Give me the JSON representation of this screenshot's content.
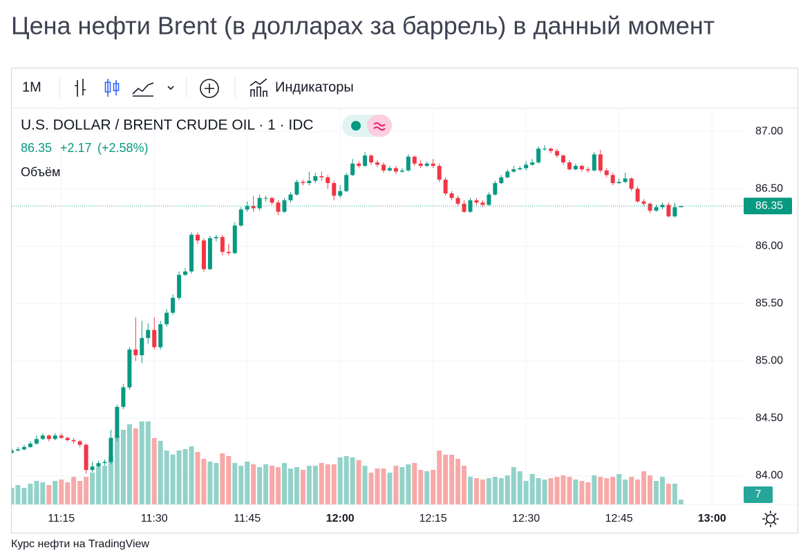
{
  "header": {
    "title": "Цена нефти Brent (в долларах за баррель) в данный момент"
  },
  "toolbar": {
    "interval": "1M",
    "indicators": "Индикаторы"
  },
  "legend": {
    "symbol": "U.S. DOLLAR / BRENT CRUDE OIL · 1 · IDC",
    "last": "86.35",
    "change": "+2.17",
    "change_percent": "(+2.58%)",
    "volume_label": "Объём"
  },
  "footer": "Курс нефти на TradingView",
  "chart_data": {
    "type": "candlestick",
    "up_color": "#089981",
    "down_color": "#f23645",
    "volume_up_color": "#92d2c9",
    "volume_down_color": "#f7a9a8",
    "grid": true,
    "xlim": [
      "11:07",
      "13:05"
    ],
    "xticks": [
      "11:15",
      "11:30",
      "11:45",
      "12:00",
      "12:15",
      "12:30",
      "12:45",
      "13:00"
    ],
    "ylim": [
      83.75,
      87.2
    ],
    "yticks": [
      {
        "value": 84,
        "label": "84.00"
      },
      {
        "value": 84.5,
        "label": "84.50"
      },
      {
        "value": 85,
        "label": "85.00"
      },
      {
        "value": 85.5,
        "label": "85.50"
      },
      {
        "value": 86,
        "label": "86.00"
      },
      {
        "value": 86.5,
        "label": "86.50"
      },
      {
        "value": 87,
        "label": "87.00"
      }
    ],
    "x": [
      "11:07",
      "11:08",
      "11:09",
      "11:10",
      "11:11",
      "11:12",
      "11:13",
      "11:14",
      "11:15",
      "11:16",
      "11:17",
      "11:18",
      "11:19",
      "11:20",
      "11:21",
      "11:22",
      "11:23",
      "11:24",
      "11:25",
      "11:26",
      "11:27",
      "11:28",
      "11:29",
      "11:30",
      "11:31",
      "11:32",
      "11:33",
      "11:34",
      "11:35",
      "11:36",
      "11:37",
      "11:38",
      "11:39",
      "11:40",
      "11:41",
      "11:42",
      "11:43",
      "11:44",
      "11:45",
      "11:46",
      "11:47",
      "11:48",
      "11:49",
      "11:50",
      "11:51",
      "11:52",
      "11:53",
      "11:54",
      "11:55",
      "11:56",
      "11:57",
      "11:58",
      "11:59",
      "12:00",
      "12:01",
      "12:02",
      "12:03",
      "12:04",
      "12:05",
      "12:06",
      "12:07",
      "12:08",
      "12:09",
      "12:10",
      "12:11",
      "12:12",
      "12:13",
      "12:14",
      "12:15",
      "12:16",
      "12:17",
      "12:18",
      "12:19",
      "12:20",
      "12:21",
      "12:22",
      "12:23",
      "12:24",
      "12:25",
      "12:26",
      "12:27",
      "12:28",
      "12:29",
      "12:30",
      "12:31",
      "12:32",
      "12:33",
      "12:34",
      "12:35",
      "12:36",
      "12:37",
      "12:38",
      "12:39",
      "12:40",
      "12:41",
      "12:42",
      "12:43",
      "12:44",
      "12:45",
      "12:46",
      "12:47",
      "12:48",
      "12:49",
      "12:50",
      "12:51",
      "12:52",
      "12:53",
      "12:54",
      "12:55"
    ],
    "open": [
      84.2,
      84.22,
      84.23,
      84.25,
      84.28,
      84.32,
      84.35,
      84.32,
      84.35,
      84.33,
      84.31,
      84.3,
      84.27,
      84.05,
      84.08,
      84.11,
      84.12,
      84.33,
      84.6,
      84.77,
      85.1,
      85.05,
      85.2,
      85.27,
      85.12,
      85.32,
      85.42,
      85.55,
      85.75,
      85.78,
      86.1,
      86.05,
      85.8,
      86.07,
      86.08,
      85.95,
      85.94,
      86.18,
      86.32,
      86.35,
      86.33,
      86.42,
      86.42,
      86.38,
      86.3,
      86.4,
      86.45,
      86.56,
      86.55,
      86.57,
      86.61,
      86.6,
      86.55,
      86.44,
      86.48,
      86.62,
      86.72,
      86.7,
      86.79,
      86.73,
      86.71,
      86.66,
      86.68,
      86.65,
      86.66,
      86.78,
      86.72,
      86.7,
      86.72,
      86.7,
      86.58,
      86.46,
      86.42,
      86.37,
      86.3,
      86.4,
      86.38,
      86.36,
      86.45,
      86.55,
      86.6,
      86.65,
      86.67,
      86.68,
      86.71,
      86.73,
      86.85,
      86.85,
      86.83,
      86.79,
      86.73,
      86.67,
      86.7,
      86.67,
      86.66,
      86.8,
      86.66,
      86.62,
      86.55,
      86.56,
      86.59,
      86.5,
      86.39,
      86.37,
      86.31,
      86.34,
      86.36,
      86.26,
      86.34
    ],
    "high": [
      84.24,
      84.25,
      84.27,
      84.3,
      84.35,
      84.37,
      84.36,
      84.37,
      84.37,
      84.34,
      84.33,
      84.31,
      84.28,
      84.12,
      84.13,
      84.14,
      84.4,
      84.62,
      84.8,
      85.12,
      85.38,
      85.35,
      85.33,
      85.38,
      85.35,
      85.45,
      85.58,
      85.78,
      85.81,
      86.12,
      86.12,
      86.07,
      86.09,
      86.1,
      86.1,
      86.02,
      86.21,
      86.34,
      86.39,
      86.44,
      86.45,
      86.44,
      86.43,
      86.4,
      86.42,
      86.47,
      86.58,
      86.58,
      86.65,
      86.64,
      86.65,
      86.62,
      86.57,
      86.53,
      86.64,
      86.76,
      86.74,
      86.82,
      86.8,
      86.75,
      86.73,
      86.7,
      86.7,
      86.68,
      86.8,
      86.79,
      86.75,
      86.74,
      86.76,
      86.72,
      86.6,
      86.48,
      86.44,
      86.4,
      86.42,
      86.42,
      86.4,
      86.47,
      86.57,
      86.62,
      86.67,
      86.7,
      86.7,
      86.74,
      86.76,
      86.87,
      86.88,
      86.86,
      86.85,
      86.8,
      86.75,
      86.72,
      86.71,
      86.69,
      86.82,
      86.84,
      86.68,
      86.64,
      86.59,
      86.64,
      86.6,
      86.52,
      86.41,
      86.38,
      86.36,
      86.38,
      86.38,
      86.38,
      86.35
    ],
    "low": [
      84.19,
      84.21,
      84.22,
      84.24,
      84.27,
      84.31,
      84.3,
      84.31,
      84.32,
      84.3,
      84.28,
      84.25,
      84.02,
      84.03,
      84.07,
      84.09,
      84.1,
      84.3,
      84.58,
      84.75,
      85.0,
      84.98,
      85.15,
      85.1,
      85.1,
      85.3,
      85.4,
      85.53,
      85.74,
      85.76,
      86.02,
      85.78,
      85.79,
      86.04,
      85.92,
      85.92,
      85.93,
      86.17,
      86.3,
      86.3,
      86.31,
      86.39,
      86.36,
      86.27,
      86.29,
      86.38,
      86.44,
      86.53,
      86.53,
      86.55,
      86.57,
      86.5,
      86.4,
      86.42,
      86.47,
      86.61,
      86.68,
      86.69,
      86.71,
      86.69,
      86.64,
      86.65,
      86.63,
      86.64,
      86.65,
      86.7,
      86.68,
      86.69,
      86.68,
      86.56,
      86.44,
      86.4,
      86.35,
      86.29,
      86.29,
      86.36,
      86.34,
      86.35,
      86.44,
      86.54,
      86.59,
      86.64,
      86.66,
      86.66,
      86.7,
      86.72,
      86.83,
      86.81,
      86.77,
      86.71,
      86.66,
      86.66,
      86.65,
      86.64,
      86.65,
      86.64,
      86.6,
      86.53,
      86.54,
      86.55,
      86.48,
      86.38,
      86.35,
      86.29,
      86.3,
      86.32,
      86.25,
      86.25,
      86.34
    ],
    "close": [
      84.22,
      84.23,
      84.25,
      84.28,
      84.32,
      84.35,
      84.32,
      84.35,
      84.33,
      84.31,
      84.3,
      84.27,
      84.05,
      84.08,
      84.11,
      84.12,
      84.33,
      84.6,
      84.77,
      85.1,
      85.05,
      85.2,
      85.27,
      85.12,
      85.32,
      85.42,
      85.55,
      85.75,
      85.78,
      86.1,
      86.05,
      85.8,
      86.07,
      86.08,
      85.95,
      85.94,
      86.18,
      86.32,
      86.35,
      86.33,
      86.42,
      86.42,
      86.38,
      86.3,
      86.4,
      86.45,
      86.56,
      86.55,
      86.57,
      86.61,
      86.6,
      86.55,
      86.44,
      86.48,
      86.62,
      86.72,
      86.7,
      86.79,
      86.73,
      86.71,
      86.66,
      86.68,
      86.65,
      86.66,
      86.78,
      86.72,
      86.7,
      86.72,
      86.7,
      86.58,
      86.46,
      86.42,
      86.37,
      86.3,
      86.4,
      86.38,
      86.36,
      86.45,
      86.55,
      86.6,
      86.65,
      86.67,
      86.68,
      86.71,
      86.73,
      86.85,
      86.85,
      86.83,
      86.79,
      86.73,
      86.67,
      86.7,
      86.67,
      86.66,
      86.8,
      86.66,
      86.62,
      86.55,
      86.56,
      86.59,
      86.5,
      86.39,
      86.37,
      86.31,
      86.34,
      86.36,
      86.26,
      86.34,
      86.35
    ],
    "volume": [
      24,
      28,
      24,
      30,
      34,
      32,
      28,
      34,
      36,
      32,
      40,
      34,
      40,
      46,
      54,
      56,
      70,
      100,
      108,
      116,
      110,
      120,
      120,
      96,
      92,
      78,
      72,
      78,
      80,
      84,
      76,
      66,
      62,
      60,
      74,
      70,
      60,
      56,
      62,
      58,
      54,
      58,
      56,
      54,
      60,
      52,
      54,
      50,
      56,
      56,
      60,
      58,
      58,
      68,
      70,
      68,
      64,
      56,
      46,
      52,
      52,
      46,
      56,
      54,
      58,
      60,
      50,
      48,
      50,
      78,
      72,
      72,
      66,
      56,
      40,
      38,
      36,
      38,
      40,
      38,
      42,
      54,
      48,
      34,
      44,
      38,
      36,
      38,
      40,
      42,
      40,
      36,
      34,
      32,
      42,
      40,
      38,
      40,
      44,
      36,
      40,
      36,
      48,
      42,
      34,
      40,
      30,
      30,
      7
    ]
  }
}
